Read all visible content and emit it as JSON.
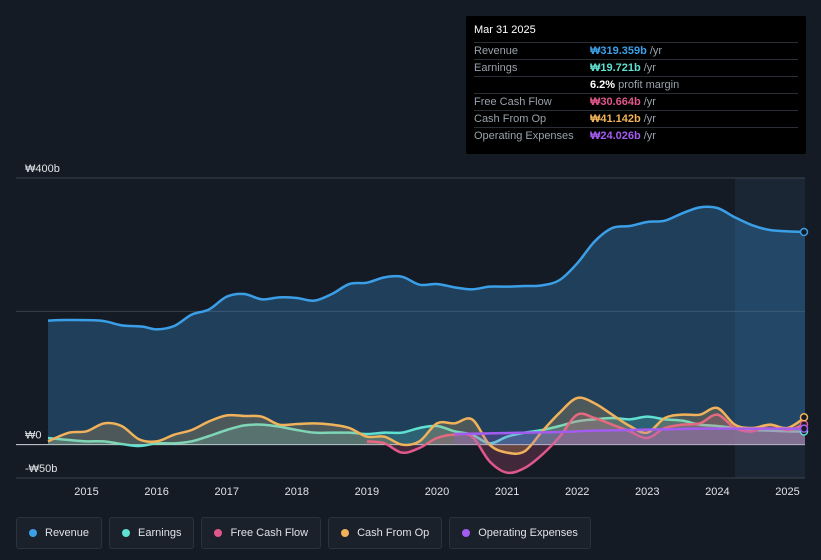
{
  "tooltip": {
    "date": "Mar 31 2025",
    "rows": [
      {
        "label": "Revenue",
        "value": "₩319.359b",
        "unit": "/yr",
        "color": "#3b9fe8"
      },
      {
        "label": "Earnings",
        "value": "₩19.721b",
        "unit": "/yr",
        "color": "#5fe0d0"
      },
      {
        "label": "",
        "value": "6.2%",
        "unit": "profit margin",
        "color": "#ffffff"
      },
      {
        "label": "Free Cash Flow",
        "value": "₩30.664b",
        "unit": "/yr",
        "color": "#e0578b"
      },
      {
        "label": "Cash From Op",
        "value": "₩41.142b",
        "unit": "/yr",
        "color": "#f0b25a"
      },
      {
        "label": "Operating Expenses",
        "value": "₩24.026b",
        "unit": "/yr",
        "color": "#a35cf0"
      }
    ]
  },
  "legend": [
    {
      "label": "Revenue",
      "color": "#3b9fe8"
    },
    {
      "label": "Earnings",
      "color": "#5fe0d0"
    },
    {
      "label": "Free Cash Flow",
      "color": "#e0578b"
    },
    {
      "label": "Cash From Op",
      "color": "#f0b25a"
    },
    {
      "label": "Operating Expenses",
      "color": "#a35cf0"
    }
  ],
  "chart_data": {
    "type": "area",
    "title": "",
    "xlabel": "",
    "ylabel": "",
    "xlim": [
      2014.45,
      2025.25
    ],
    "ylim": [
      -50,
      400
    ],
    "y_tick_labels": [
      {
        "value": 400,
        "label": "₩400b"
      },
      {
        "value": 0,
        "label": "₩0"
      },
      {
        "value": -50,
        "label": "-₩50b"
      }
    ],
    "x_ticks": [
      {
        "value": 2015,
        "label": "2015"
      },
      {
        "value": 2016,
        "label": "2016"
      },
      {
        "value": 2017,
        "label": "2017"
      },
      {
        "value": 2018,
        "label": "2018"
      },
      {
        "value": 2019,
        "label": "2019"
      },
      {
        "value": 2020,
        "label": "2020"
      },
      {
        "value": 2021,
        "label": "2021"
      },
      {
        "value": 2022,
        "label": "2022"
      },
      {
        "value": 2023,
        "label": "2023"
      },
      {
        "value": 2024,
        "label": "2024"
      },
      {
        "value": 2025,
        "label": "2025"
      }
    ],
    "forecast_start": 2024.25,
    "series": [
      {
        "name": "Revenue",
        "color": "#3b9fe8",
        "fill": true,
        "points": [
          [
            2014.45,
            186
          ],
          [
            2014.7,
            187
          ],
          [
            2015.2,
            186
          ],
          [
            2015.5,
            179
          ],
          [
            2015.8,
            177
          ],
          [
            2016.0,
            173
          ],
          [
            2016.25,
            178
          ],
          [
            2016.5,
            195
          ],
          [
            2016.75,
            203
          ],
          [
            2017.0,
            222
          ],
          [
            2017.25,
            226
          ],
          [
            2017.5,
            218
          ],
          [
            2017.75,
            221
          ],
          [
            2018.0,
            220
          ],
          [
            2018.25,
            216
          ],
          [
            2018.5,
            226
          ],
          [
            2018.75,
            241
          ],
          [
            2019.0,
            243
          ],
          [
            2019.25,
            251
          ],
          [
            2019.5,
            252
          ],
          [
            2019.75,
            240
          ],
          [
            2020.0,
            241
          ],
          [
            2020.25,
            236
          ],
          [
            2020.5,
            233
          ],
          [
            2020.75,
            237
          ],
          [
            2021.0,
            237
          ],
          [
            2021.25,
            238
          ],
          [
            2021.5,
            239
          ],
          [
            2021.75,
            247
          ],
          [
            2022.0,
            272
          ],
          [
            2022.25,
            305
          ],
          [
            2022.5,
            325
          ],
          [
            2022.75,
            328
          ],
          [
            2023.0,
            334
          ],
          [
            2023.25,
            336
          ],
          [
            2023.5,
            347
          ],
          [
            2023.75,
            356
          ],
          [
            2024.0,
            355
          ],
          [
            2024.25,
            341
          ],
          [
            2024.5,
            329
          ],
          [
            2024.75,
            322
          ],
          [
            2025.0,
            320
          ],
          [
            2025.25,
            319
          ]
        ]
      },
      {
        "name": "Earnings",
        "color": "#5fe0d0",
        "fill": true,
        "points": [
          [
            2014.45,
            10
          ],
          [
            2014.75,
            7
          ],
          [
            2015.0,
            5
          ],
          [
            2015.25,
            5
          ],
          [
            2015.5,
            1
          ],
          [
            2015.75,
            -2
          ],
          [
            2016.0,
            2
          ],
          [
            2016.25,
            2
          ],
          [
            2016.5,
            5
          ],
          [
            2016.75,
            13
          ],
          [
            2017.0,
            22
          ],
          [
            2017.25,
            29
          ],
          [
            2017.5,
            30
          ],
          [
            2017.75,
            27
          ],
          [
            2018.0,
            22
          ],
          [
            2018.25,
            18
          ],
          [
            2018.5,
            18
          ],
          [
            2018.75,
            18
          ],
          [
            2019.0,
            16
          ],
          [
            2019.25,
            18
          ],
          [
            2019.5,
            18
          ],
          [
            2019.75,
            25
          ],
          [
            2020.0,
            28
          ],
          [
            2020.25,
            20
          ],
          [
            2020.5,
            15
          ],
          [
            2020.75,
            2
          ],
          [
            2021.0,
            12
          ],
          [
            2021.25,
            18
          ],
          [
            2021.5,
            22
          ],
          [
            2021.75,
            28
          ],
          [
            2022.0,
            35
          ],
          [
            2022.25,
            38
          ],
          [
            2022.5,
            40
          ],
          [
            2022.75,
            38
          ],
          [
            2023.0,
            42
          ],
          [
            2023.25,
            38
          ],
          [
            2023.5,
            36
          ],
          [
            2023.75,
            30
          ],
          [
            2024.0,
            28
          ],
          [
            2024.25,
            25
          ],
          [
            2024.5,
            22
          ],
          [
            2024.75,
            21
          ],
          [
            2025.0,
            20
          ],
          [
            2025.25,
            19.7
          ]
        ]
      },
      {
        "name": "Free Cash Flow",
        "color": "#e0578b",
        "fill": true,
        "points": [
          [
            2019.0,
            5
          ],
          [
            2019.25,
            2
          ],
          [
            2019.5,
            -12
          ],
          [
            2019.75,
            -5
          ],
          [
            2020.0,
            10
          ],
          [
            2020.25,
            15
          ],
          [
            2020.5,
            12
          ],
          [
            2020.75,
            -25
          ],
          [
            2021.0,
            -42
          ],
          [
            2021.25,
            -35
          ],
          [
            2021.5,
            -15
          ],
          [
            2021.75,
            12
          ],
          [
            2022.0,
            45
          ],
          [
            2022.25,
            40
          ],
          [
            2022.5,
            30
          ],
          [
            2022.75,
            20
          ],
          [
            2023.0,
            10
          ],
          [
            2023.25,
            25
          ],
          [
            2023.5,
            30
          ],
          [
            2023.75,
            32
          ],
          [
            2024.0,
            45
          ],
          [
            2024.25,
            25
          ],
          [
            2024.5,
            20
          ],
          [
            2024.75,
            30
          ],
          [
            2025.0,
            22
          ],
          [
            2025.25,
            30.7
          ]
        ]
      },
      {
        "name": "Cash From Op",
        "color": "#f0b25a",
        "fill": true,
        "points": [
          [
            2014.45,
            5
          ],
          [
            2014.75,
            18
          ],
          [
            2015.0,
            20
          ],
          [
            2015.25,
            32
          ],
          [
            2015.5,
            28
          ],
          [
            2015.75,
            8
          ],
          [
            2016.0,
            5
          ],
          [
            2016.25,
            15
          ],
          [
            2016.5,
            22
          ],
          [
            2016.75,
            35
          ],
          [
            2017.0,
            44
          ],
          [
            2017.25,
            43
          ],
          [
            2017.5,
            42
          ],
          [
            2017.75,
            30
          ],
          [
            2018.0,
            31
          ],
          [
            2018.25,
            32
          ],
          [
            2018.5,
            30
          ],
          [
            2018.75,
            25
          ],
          [
            2019.0,
            12
          ],
          [
            2019.25,
            12
          ],
          [
            2019.5,
            0
          ],
          [
            2019.75,
            5
          ],
          [
            2020.0,
            32
          ],
          [
            2020.25,
            32
          ],
          [
            2020.5,
            38
          ],
          [
            2020.75,
            0
          ],
          [
            2021.0,
            -12
          ],
          [
            2021.25,
            -10
          ],
          [
            2021.5,
            20
          ],
          [
            2021.75,
            48
          ],
          [
            2022.0,
            70
          ],
          [
            2022.25,
            62
          ],
          [
            2022.5,
            45
          ],
          [
            2022.75,
            28
          ],
          [
            2023.0,
            18
          ],
          [
            2023.25,
            40
          ],
          [
            2023.5,
            45
          ],
          [
            2023.75,
            45
          ],
          [
            2024.0,
            55
          ],
          [
            2024.25,
            30
          ],
          [
            2024.5,
            25
          ],
          [
            2024.75,
            30
          ],
          [
            2025.0,
            25
          ],
          [
            2025.25,
            41.1
          ]
        ]
      },
      {
        "name": "Operating Expenses",
        "color": "#a35cf0",
        "fill": true,
        "points": [
          [
            2020.25,
            16
          ],
          [
            2020.75,
            17
          ],
          [
            2021.25,
            18
          ],
          [
            2021.75,
            19
          ],
          [
            2022.25,
            21
          ],
          [
            2022.75,
            22
          ],
          [
            2023.25,
            23
          ],
          [
            2023.75,
            24
          ],
          [
            2024.25,
            24
          ],
          [
            2024.75,
            24
          ],
          [
            2025.25,
            24.0
          ]
        ]
      }
    ]
  }
}
